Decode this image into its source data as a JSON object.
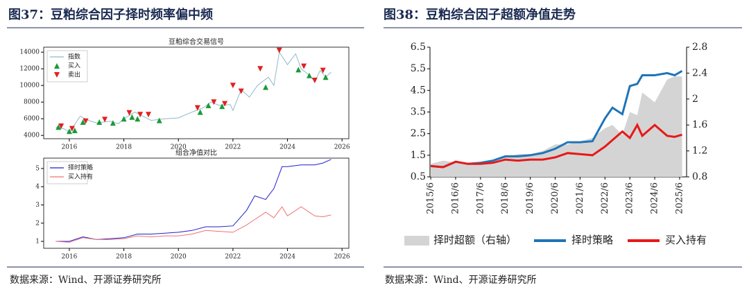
{
  "figures": [
    {
      "caption": "图37：豆粕综合因子择时频率偏中频",
      "source": "数据来源：Wind、开源证券研究所"
    },
    {
      "caption": "图38：豆粕综合因子超额净值走势",
      "source": "数据来源：Wind、开源证券研究所"
    }
  ],
  "chart_data": [
    {
      "type": "line",
      "title": "豆粕综合交易信号",
      "legend": "upper left",
      "xlim": [
        2015.06,
        2026.25
      ],
      "xticks": [
        2016,
        2018,
        2020,
        2022,
        2024,
        2026
      ],
      "ylim": [
        3600,
        14600
      ],
      "yticks": [
        4000,
        6000,
        8000,
        10000,
        12000,
        14000
      ],
      "series": [
        {
          "name": "指数",
          "color": "#8fb9c9",
          "x": [
            2015.5,
            2015.8,
            2016.0,
            2016.4,
            2016.7,
            2017.0,
            2017.5,
            2017.8,
            2018.0,
            2018.4,
            2018.7,
            2019.0,
            2019.5,
            2020.0,
            2020.5,
            2020.9,
            2021.2,
            2021.5,
            2021.9,
            2022.0,
            2022.3,
            2022.6,
            2022.9,
            2023.3,
            2023.5,
            2023.7,
            2024.0,
            2024.3,
            2024.5,
            2024.7,
            2025.0,
            2025.2,
            2025.4,
            2025.6
          ],
          "values": [
            5000,
            4800,
            4400,
            6300,
            5800,
            5500,
            5700,
            5400,
            6000,
            6800,
            6300,
            5800,
            6000,
            6100,
            6800,
            7300,
            8000,
            7600,
            7700,
            7000,
            9500,
            8600,
            10000,
            11000,
            10000,
            14000,
            12500,
            13800,
            12000,
            11500,
            10500,
            11800,
            11000,
            11600
          ]
        },
        {
          "name": "买入",
          "color": "#1a9a3a",
          "marker": "triangle-up",
          "x": [
            2015.6,
            2016.0,
            2016.2,
            2016.5,
            2017.1,
            2017.6,
            2018.0,
            2018.3,
            2018.5,
            2019.3,
            2020.8,
            2021.1,
            2021.6,
            2023.2,
            2024.4,
            2024.8,
            2025.4
          ],
          "values": [
            5000,
            4500,
            4600,
            5600,
            5600,
            5500,
            6000,
            6200,
            6000,
            5800,
            6800,
            7600,
            7500,
            9800,
            11900,
            11200,
            11000
          ]
        },
        {
          "name": "卖出",
          "color": "#e02020",
          "marker": "triangle-down",
          "x": [
            2015.7,
            2016.1,
            2016.6,
            2017.3,
            2018.2,
            2018.6,
            2018.9,
            2020.7,
            2021.3,
            2021.7,
            2022.0,
            2022.3,
            2023.0,
            2023.7,
            2024.6,
            2025.0,
            2025.3
          ],
          "values": [
            5100,
            4800,
            5700,
            5900,
            6700,
            6500,
            6500,
            7300,
            8000,
            7800,
            10000,
            9300,
            12000,
            14200,
            12300,
            10600,
            11800
          ]
        }
      ]
    },
    {
      "type": "line",
      "title": "组合净值对比",
      "legend": "upper left",
      "xlim": [
        2015.06,
        2026.25
      ],
      "xticks": [
        2016,
        2018,
        2020,
        2022,
        2024,
        2026
      ],
      "ylim": [
        0.62,
        5.57
      ],
      "yticks": [
        1,
        2,
        3,
        4,
        5
      ],
      "x": [
        2015.5,
        2016.0,
        2016.5,
        2017.0,
        2017.5,
        2018.0,
        2018.5,
        2019.0,
        2019.5,
        2020.0,
        2020.5,
        2021.0,
        2021.5,
        2022.0,
        2022.5,
        2022.8,
        2023.2,
        2023.5,
        2023.8,
        2024.0,
        2024.5,
        2025.0,
        2025.3,
        2025.6
      ],
      "series": [
        {
          "name": "择时策略",
          "color": "#1f1fd0",
          "values": [
            1.0,
            1.0,
            1.25,
            1.1,
            1.15,
            1.2,
            1.4,
            1.4,
            1.45,
            1.5,
            1.6,
            1.8,
            1.8,
            1.85,
            2.7,
            3.5,
            3.3,
            3.9,
            5.1,
            5.1,
            5.2,
            5.2,
            5.3,
            5.5
          ]
        },
        {
          "name": "买入持有",
          "color": "#f07070",
          "values": [
            1.0,
            0.95,
            1.2,
            1.1,
            1.1,
            1.15,
            1.3,
            1.25,
            1.3,
            1.3,
            1.4,
            1.6,
            1.55,
            1.5,
            1.9,
            2.2,
            2.6,
            2.3,
            2.9,
            2.4,
            2.9,
            2.4,
            2.35,
            2.45
          ]
        }
      ]
    },
    {
      "type": "line",
      "legend": "bottom",
      "xlim": [
        2015.47,
        2025.78
      ],
      "xticks": [
        {
          "value": 2015.5,
          "label": "2015/6"
        },
        {
          "value": 2016.5,
          "label": "2016/6"
        },
        {
          "value": 2017.5,
          "label": "2017/6"
        },
        {
          "value": 2018.5,
          "label": "2018/6"
        },
        {
          "value": 2019.5,
          "label": "2019/6"
        },
        {
          "value": 2020.5,
          "label": "2020/6"
        },
        {
          "value": 2021.5,
          "label": "2021/6"
        },
        {
          "value": 2022.5,
          "label": "2022/6"
        },
        {
          "value": 2023.5,
          "label": "2023/6"
        },
        {
          "value": 2024.5,
          "label": "2024/6"
        },
        {
          "value": 2025.5,
          "label": "2025/6"
        }
      ],
      "ylim": [
        0.5,
        6.5
      ],
      "yticks": [
        0.5,
        1.5,
        2.5,
        3.5,
        4.5,
        5.5,
        6.5
      ],
      "y2lim": [
        0.8,
        2.8
      ],
      "y2ticks": [
        0.8,
        1.2,
        1.6,
        2,
        2.4,
        2.8
      ],
      "x": [
        2015.5,
        2016.0,
        2016.5,
        2017.0,
        2017.5,
        2018.0,
        2018.5,
        2019.0,
        2019.5,
        2020.0,
        2020.5,
        2021.0,
        2021.5,
        2022.0,
        2022.5,
        2022.8,
        2023.2,
        2023.5,
        2023.8,
        2024.0,
        2024.5,
        2025.0,
        2025.3,
        2025.6
      ],
      "series": [
        {
          "name": "择时超额（右轴）",
          "color": "#d4d4d4",
          "style": "area",
          "axis": "y2",
          "values": [
            1.0,
            1.05,
            1.02,
            1.0,
            1.0,
            1.05,
            1.1,
            1.15,
            1.15,
            1.2,
            1.3,
            1.3,
            1.35,
            1.4,
            1.55,
            1.6,
            1.45,
            1.8,
            1.75,
            2.1,
            1.95,
            2.3,
            2.35,
            2.35
          ]
        },
        {
          "name": "择时策略",
          "color": "#1f74b8",
          "values": [
            1.0,
            0.95,
            1.2,
            1.1,
            1.15,
            1.25,
            1.45,
            1.45,
            1.5,
            1.6,
            1.8,
            2.1,
            2.1,
            2.15,
            3.2,
            3.7,
            3.4,
            4.7,
            4.8,
            5.2,
            5.2,
            5.3,
            5.2,
            5.4
          ]
        },
        {
          "name": "买入持有",
          "color": "#e81818",
          "values": [
            1.0,
            0.95,
            1.2,
            1.1,
            1.1,
            1.15,
            1.3,
            1.25,
            1.3,
            1.3,
            1.4,
            1.6,
            1.55,
            1.5,
            1.9,
            2.2,
            2.6,
            2.3,
            2.9,
            2.4,
            2.9,
            2.4,
            2.35,
            2.45
          ]
        }
      ]
    }
  ]
}
